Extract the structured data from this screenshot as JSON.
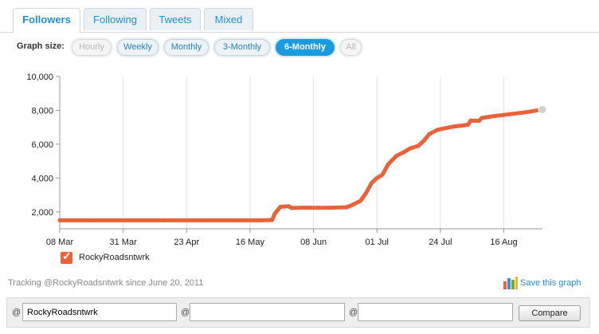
{
  "tabs": [
    {
      "label": "Followers",
      "active": true
    },
    {
      "label": "Following",
      "active": false
    },
    {
      "label": "Tweets",
      "active": false
    },
    {
      "label": "Mixed",
      "active": false
    }
  ],
  "graph_size": {
    "label": "Graph size:",
    "options": [
      {
        "label": "Hourly",
        "state": "disabled"
      },
      {
        "label": "Weekly",
        "state": "normal"
      },
      {
        "label": "Monthly",
        "state": "normal"
      },
      {
        "label": "3-Monthly",
        "state": "normal"
      },
      {
        "label": "6-Monthly",
        "state": "selected"
      },
      {
        "label": "All",
        "state": "disabled"
      }
    ]
  },
  "chart_data": {
    "type": "line",
    "title": "",
    "xlabel": "",
    "ylabel": "",
    "x_ticks": [
      "08 Mar",
      "31 Mar",
      "23 Apr",
      "16 May",
      "08 Jun",
      "01 Jul",
      "24 Jul",
      "16 Aug"
    ],
    "y_ticks": [
      "2,000",
      "4,000",
      "6,000",
      "8,000",
      "10,000"
    ],
    "ylim": [
      1000,
      10000
    ],
    "xlim": [
      "2011-03-08",
      "2011-08-30"
    ],
    "grid": {
      "vertical": true,
      "horizontal": false
    },
    "series": [
      {
        "name": "RockyRoadsntwrk",
        "color": "#e9623a",
        "points": [
          [
            "2011-03-08",
            1500
          ],
          [
            "2011-03-20",
            1500
          ],
          [
            "2011-04-01",
            1500
          ],
          [
            "2011-04-15",
            1500
          ],
          [
            "2011-04-30",
            1500
          ],
          [
            "2011-05-12",
            1500
          ],
          [
            "2011-05-20",
            1500
          ],
          [
            "2011-05-24",
            1520
          ],
          [
            "2011-05-25",
            1900
          ],
          [
            "2011-05-27",
            2300
          ],
          [
            "2011-05-30",
            2330
          ],
          [
            "2011-05-31",
            2230
          ],
          [
            "2011-06-05",
            2250
          ],
          [
            "2011-06-10",
            2240
          ],
          [
            "2011-06-15",
            2250
          ],
          [
            "2011-06-20",
            2270
          ],
          [
            "2011-06-22",
            2400
          ],
          [
            "2011-06-25",
            2650
          ],
          [
            "2011-06-27",
            3100
          ],
          [
            "2011-06-29",
            3700
          ],
          [
            "2011-07-01",
            4000
          ],
          [
            "2011-07-03",
            4200
          ],
          [
            "2011-07-05",
            4800
          ],
          [
            "2011-07-08",
            5300
          ],
          [
            "2011-07-11",
            5550
          ],
          [
            "2011-07-13",
            5750
          ],
          [
            "2011-07-16",
            5900
          ],
          [
            "2011-07-18",
            6200
          ],
          [
            "2011-07-20",
            6600
          ],
          [
            "2011-07-23",
            6850
          ],
          [
            "2011-07-26",
            6950
          ],
          [
            "2011-07-29",
            7050
          ],
          [
            "2011-08-01",
            7100
          ],
          [
            "2011-08-03",
            7150
          ],
          [
            "2011-08-04",
            7400
          ],
          [
            "2011-08-07",
            7380
          ],
          [
            "2011-08-08",
            7550
          ],
          [
            "2011-08-12",
            7650
          ],
          [
            "2011-08-18",
            7770
          ],
          [
            "2011-08-24",
            7890
          ],
          [
            "2011-08-30",
            8050
          ]
        ]
      }
    ],
    "legend": {
      "placement": "bottom-left",
      "label": "RockyRoadsntwrk",
      "checked": true
    }
  },
  "tracking_text": "Tracking @RockyRoadsntwrk since June 20, 2011",
  "save_link": "Save this graph",
  "compare": {
    "at_symbol": "@",
    "inputs": [
      {
        "value": "RockyRoadsntwrk"
      },
      {
        "value": ""
      },
      {
        "value": ""
      }
    ],
    "button_label": "Compare"
  }
}
